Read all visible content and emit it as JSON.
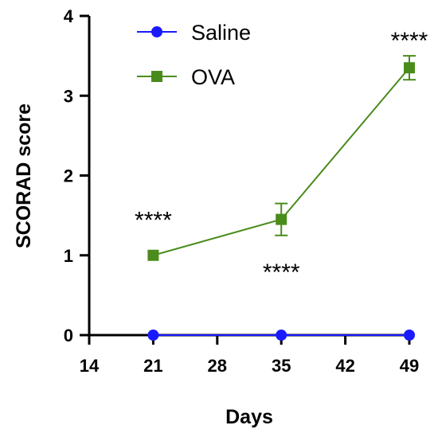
{
  "chart_data": {
    "type": "line",
    "xlabel": "Days",
    "ylabel": "SCORAD score",
    "xlim": [
      14,
      49
    ],
    "ylim": [
      0,
      4
    ],
    "x_ticks": [
      14,
      21,
      28,
      35,
      42,
      49
    ],
    "y_ticks": [
      0,
      1,
      2,
      3,
      4
    ],
    "legend_position": "top-left",
    "series": [
      {
        "name": "Saline",
        "color": "#1a1aff",
        "marker": "circle",
        "x": [
          21,
          35,
          49
        ],
        "y": [
          0,
          0,
          0
        ],
        "error": [
          0,
          0,
          0
        ]
      },
      {
        "name": "OVA",
        "color": "#4a8c1c",
        "marker": "square",
        "x": [
          21,
          35,
          49
        ],
        "y": [
          1.0,
          1.45,
          3.35
        ],
        "error": [
          0,
          0.2,
          0.15
        ]
      }
    ],
    "annotations": [
      {
        "text": "****",
        "x": 21,
        "y": 1.45
      },
      {
        "text": "****",
        "x": 35,
        "y": 0.8
      },
      {
        "text": "****",
        "x": 49,
        "y": 3.7
      }
    ]
  }
}
